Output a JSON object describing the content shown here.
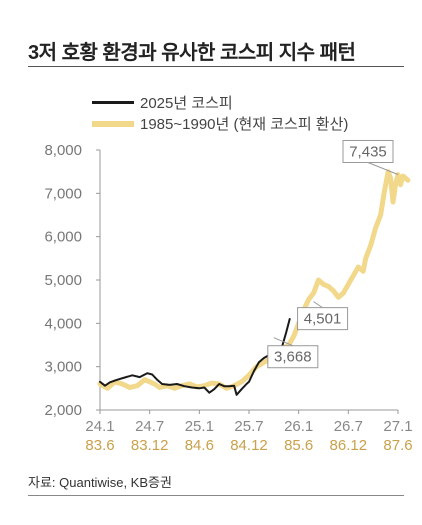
{
  "title": "3저 호황 환경과 유사한 코스피 지수 패턴",
  "source": "자료: Quantiwise, KB증권",
  "colors": {
    "series_2025": "#1a1a1a",
    "series_1985": "#f2d88a",
    "axis_top": "#888888",
    "axis_bottom": "#c9a14a",
    "callout_border": "#999999",
    "callout_text": "#666666"
  },
  "chart_data": {
    "type": "line",
    "ylim": [
      2000,
      8000
    ],
    "yticks": [
      "8,000",
      "7,000",
      "6,000",
      "5,000",
      "4,000",
      "3,000",
      "2,000"
    ],
    "xticks_top": [
      "24.1",
      "24.7",
      "25.1",
      "25.7",
      "26.1",
      "26.7",
      "27.1"
    ],
    "xticks_bottom": [
      "83.6",
      "83.12",
      "84.6",
      "84.12",
      "85.6",
      "86.12",
      "87.6"
    ],
    "series": [
      {
        "name": "2025년 코스피",
        "points": [
          [
            0.0,
            2650
          ],
          [
            0.1,
            2560
          ],
          [
            0.2,
            2640
          ],
          [
            0.35,
            2700
          ],
          [
            0.5,
            2750
          ],
          [
            0.65,
            2800
          ],
          [
            0.8,
            2760
          ],
          [
            0.95,
            2850
          ],
          [
            1.05,
            2820
          ],
          [
            1.15,
            2700
          ],
          [
            1.25,
            2600
          ],
          [
            1.4,
            2580
          ],
          [
            1.55,
            2600
          ],
          [
            1.7,
            2550
          ],
          [
            1.85,
            2520
          ],
          [
            2.0,
            2500
          ],
          [
            2.1,
            2520
          ],
          [
            2.2,
            2400
          ],
          [
            2.3,
            2480
          ],
          [
            2.4,
            2600
          ],
          [
            2.5,
            2550
          ],
          [
            2.6,
            2550
          ],
          [
            2.7,
            2560
          ],
          [
            2.75,
            2350
          ],
          [
            2.85,
            2480
          ],
          [
            2.95,
            2600
          ],
          [
            3.0,
            2650
          ],
          [
            3.1,
            2900
          ],
          [
            3.2,
            3100
          ],
          [
            3.3,
            3200
          ],
          [
            3.38,
            3250
          ],
          [
            3.46,
            3150
          ],
          [
            3.55,
            3300
          ],
          [
            3.65,
            3400
          ],
          [
            3.75,
            3800
          ],
          [
            3.82,
            4100
          ]
        ]
      },
      {
        "name": "1985~1990년 (현재 코스피 환산)",
        "points": [
          [
            0.0,
            2600
          ],
          [
            0.15,
            2500
          ],
          [
            0.3,
            2650
          ],
          [
            0.45,
            2600
          ],
          [
            0.6,
            2520
          ],
          [
            0.75,
            2560
          ],
          [
            0.9,
            2700
          ],
          [
            1.0,
            2650
          ],
          [
            1.1,
            2600
          ],
          [
            1.2,
            2520
          ],
          [
            1.35,
            2560
          ],
          [
            1.5,
            2500
          ],
          [
            1.65,
            2560
          ],
          [
            1.8,
            2600
          ],
          [
            1.95,
            2530
          ],
          [
            2.1,
            2560
          ],
          [
            2.25,
            2620
          ],
          [
            2.4,
            2600
          ],
          [
            2.55,
            2500
          ],
          [
            2.7,
            2560
          ],
          [
            2.85,
            2650
          ],
          [
            3.0,
            2800
          ],
          [
            3.15,
            3000
          ],
          [
            3.3,
            3100
          ],
          [
            3.45,
            3200
          ],
          [
            3.55,
            3300
          ],
          [
            3.65,
            3400
          ],
          [
            3.8,
            3500
          ],
          [
            3.9,
            3700
          ],
          [
            4.0,
            4000
          ],
          [
            4.1,
            4300
          ],
          [
            4.2,
            4550
          ],
          [
            4.3,
            4700
          ],
          [
            4.4,
            5000
          ],
          [
            4.5,
            4900
          ],
          [
            4.6,
            4850
          ],
          [
            4.7,
            4750
          ],
          [
            4.8,
            4600
          ],
          [
            4.9,
            4700
          ],
          [
            5.0,
            4900
          ],
          [
            5.1,
            5100
          ],
          [
            5.2,
            5300
          ],
          [
            5.3,
            5200
          ],
          [
            5.35,
            5500
          ],
          [
            5.45,
            5800
          ],
          [
            5.55,
            6200
          ],
          [
            5.65,
            6500
          ],
          [
            5.72,
            7000
          ],
          [
            5.8,
            7500
          ],
          [
            5.85,
            7350
          ],
          [
            5.9,
            6800
          ],
          [
            5.95,
            7200
          ],
          [
            6.0,
            7435
          ],
          [
            6.05,
            7200
          ],
          [
            6.1,
            7400
          ],
          [
            6.2,
            7300
          ]
        ]
      }
    ],
    "annotations": [
      {
        "label": "3,668",
        "x": 3.5,
        "y": 3668
      },
      {
        "label": "4,501",
        "x": 4.3,
        "y": 4501
      },
      {
        "label": "7,435",
        "x": 6.0,
        "y": 7435
      }
    ]
  }
}
